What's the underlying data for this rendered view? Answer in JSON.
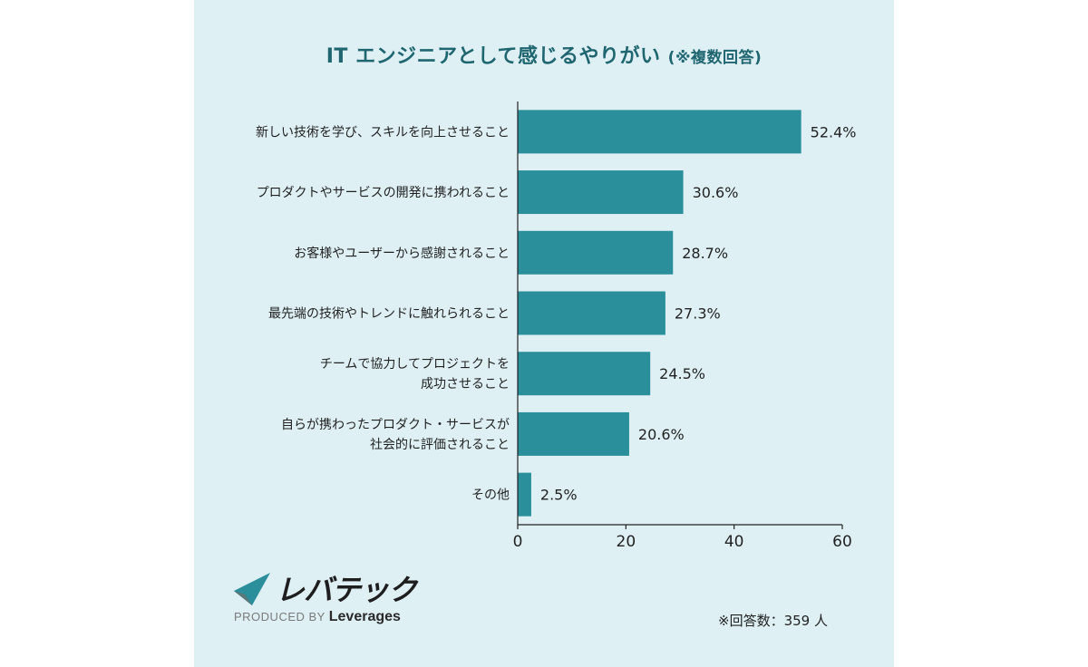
{
  "title": {
    "main": "IT エンジニアとして感じるやりがい",
    "sub": "(※複数回答)"
  },
  "chart_data": {
    "type": "bar",
    "orientation": "horizontal",
    "categories": [
      [
        "新しい技術を学び、スキルを向上させること"
      ],
      [
        "プロダクトやサービスの開発に携われること"
      ],
      [
        "お客様やユーザーから感謝されること"
      ],
      [
        "最先端の技術やトレンドに触れられること"
      ],
      [
        "チームで協力してプロジェクトを",
        "成功させること"
      ],
      [
        "自らが携わったプロダクト・サービスが",
        "社会的に評価されること"
      ],
      [
        "その他"
      ]
    ],
    "values": [
      52.4,
      30.6,
      28.7,
      27.3,
      24.5,
      20.6,
      2.5
    ],
    "value_labels": [
      "52.4%",
      "30.6%",
      "28.7%",
      "27.3%",
      "24.5%",
      "20.6%",
      "2.5%"
    ],
    "xlim": [
      0,
      60
    ],
    "xticks": [
      "0",
      "20",
      "40",
      "60"
    ],
    "bar_color": "#2a8f9b"
  },
  "logo": {
    "name": "レバテック",
    "produced_by": "PRODUCED BY",
    "company": "Leverages"
  },
  "footnote": "※回答数：359 人",
  "colors": {
    "background": "#dff0f5",
    "title": "#1f6670",
    "bar": "#2a8f9b"
  }
}
